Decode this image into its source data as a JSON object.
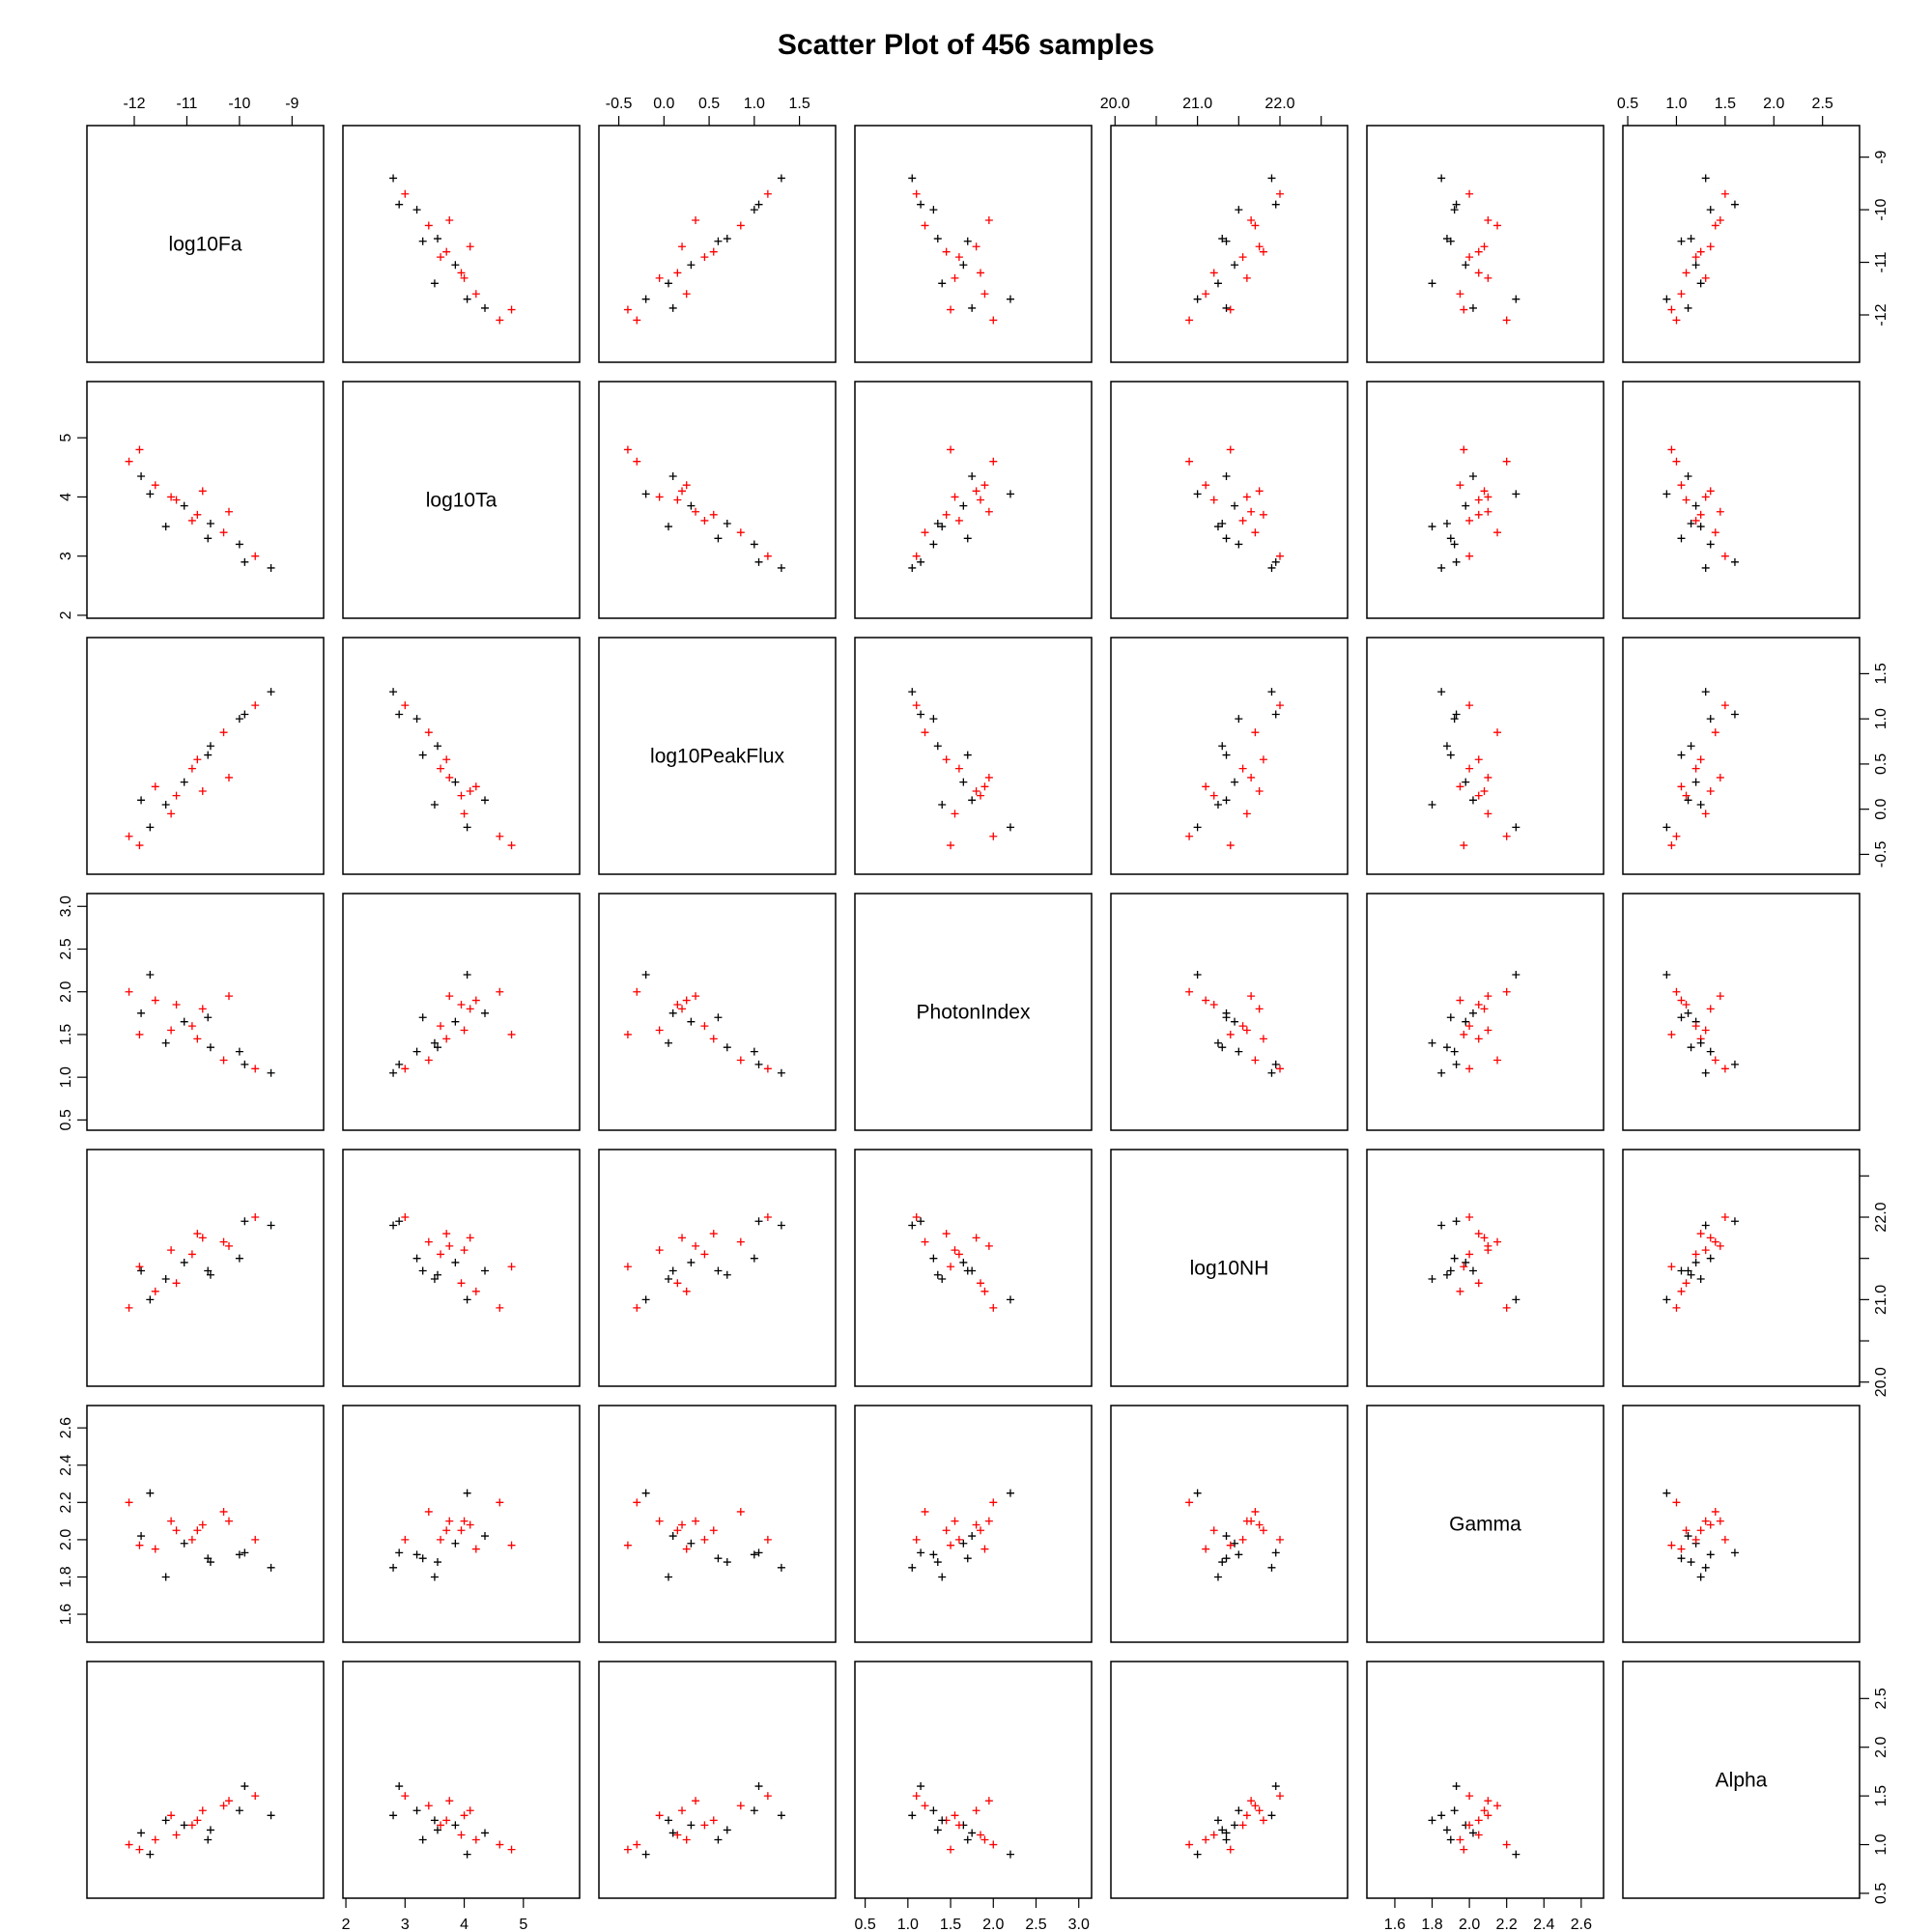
{
  "chart_data": {
    "type": "scatter",
    "plot_type": "scatterplot-matrix",
    "title": "Scatter Plot of 456  samples",
    "variables": [
      "log10Fa",
      "log10Ta",
      "log10PeakFlux",
      "PhotonIndex",
      "log10NH",
      "Gamma",
      "Alpha"
    ],
    "marker": "+",
    "colors": {
      "group_1": "#000000",
      "group_2": "#ff0000"
    },
    "axes": {
      "log10Fa": {
        "range": [
          -12.9,
          -8.4
        ],
        "ticks": [
          -12,
          -11,
          -10,
          -9
        ],
        "tick_labels": [
          "-12",
          "-11",
          "-10",
          "-9"
        ]
      },
      "log10Ta": {
        "range": [
          1.95,
          5.95
        ],
        "ticks": [
          2,
          3,
          4,
          5
        ],
        "tick_labels": [
          "2",
          "3",
          "4",
          "5"
        ]
      },
      "log10PeakFlux": {
        "range": [
          -0.72,
          1.9
        ],
        "ticks": [
          -0.5,
          0.0,
          0.5,
          1.0,
          1.5
        ],
        "tick_labels": [
          "-0.5",
          "0.0",
          "0.5",
          "1.0",
          "1.5"
        ]
      },
      "PhotonIndex": {
        "range": [
          0.38,
          3.15
        ],
        "ticks": [
          0.5,
          1.0,
          1.5,
          2.0,
          2.5,
          3.0
        ],
        "tick_labels": [
          "0.5",
          "1.0",
          "1.5",
          "2.0",
          "2.5",
          "3.0"
        ]
      },
      "log10NH": {
        "range": [
          19.95,
          22.82
        ],
        "ticks": [
          20.0,
          20.5,
          21.0,
          21.5,
          22.0,
          22.5
        ],
        "tick_labels": [
          "20.0",
          "",
          "21.0",
          "",
          "22.0",
          ""
        ]
      },
      "Gamma": {
        "range": [
          1.45,
          2.72
        ],
        "ticks": [
          1.6,
          1.8,
          2.0,
          2.2,
          2.4,
          2.6
        ],
        "tick_labels": [
          "1.6",
          "1.8",
          "2.0",
          "2.2",
          "2.4",
          "2.6"
        ]
      },
      "Alpha": {
        "range": [
          0.45,
          2.88
        ],
        "ticks": [
          0.5,
          1.0,
          1.5,
          2.0,
          2.5
        ],
        "tick_labels": [
          "0.5",
          "1.0",
          "1.5",
          "2.0",
          "2.5"
        ]
      }
    },
    "axis_placement": {
      "top": [
        "log10Fa",
        "log10PeakFlux",
        "log10NH",
        "Alpha"
      ],
      "bottom": [
        "log10Ta",
        "PhotonIndex",
        "Gamma"
      ],
      "left": [
        "log10Ta",
        "PhotonIndex",
        "Gamma"
      ],
      "right": [
        "log10Fa",
        "log10PeakFlux",
        "log10NH",
        "Alpha"
      ]
    },
    "sample_count": 456,
    "points": {
      "fields": [
        "log10Fa",
        "log10Ta",
        "log10PeakFlux",
        "PhotonIndex",
        "log10NH",
        "Gamma",
        "Alpha",
        "group"
      ],
      "rows": [
        [
          -11.87,
          4.35,
          0.1,
          1.75,
          21.35,
          2.02,
          1.12,
          1
        ],
        [
          -11.6,
          4.2,
          0.25,
          1.9,
          21.1,
          1.95,
          1.05,
          2
        ],
        [
          -11.3,
          4.0,
          -0.05,
          1.55,
          21.6,
          2.1,
          1.3,
          2
        ],
        [
          -11.05,
          3.85,
          0.3,
          1.65,
          21.45,
          1.98,
          1.2,
          1
        ],
        [
          -10.8,
          3.7,
          0.55,
          1.45,
          21.8,
          2.05,
          1.25,
          2
        ],
        [
          -10.55,
          3.55,
          0.7,
          1.35,
          21.3,
          1.88,
          1.15,
          1
        ],
        [
          -10.3,
          3.4,
          0.85,
          1.2,
          21.7,
          2.15,
          1.4,
          2
        ],
        [
          -10.0,
          3.2,
          1.0,
          1.3,
          21.5,
          1.92,
          1.35,
          1
        ],
        [
          -9.7,
          3.0,
          1.15,
          1.1,
          22.0,
          2.0,
          1.5,
          2
        ],
        [
          -9.4,
          2.8,
          1.3,
          1.05,
          21.9,
          1.85,
          1.3,
          1
        ],
        [
          -12.1,
          4.6,
          -0.3,
          2.0,
          20.9,
          2.2,
          1.0,
          2
        ],
        [
          -11.7,
          4.05,
          -0.2,
          2.2,
          21.0,
          2.25,
          0.9,
          1
        ],
        [
          -11.2,
          3.95,
          0.15,
          1.85,
          21.2,
          2.05,
          1.1,
          2
        ],
        [
          -10.9,
          3.6,
          0.45,
          1.6,
          21.55,
          2.0,
          1.2,
          2
        ],
        [
          -10.6,
          3.3,
          0.6,
          1.7,
          21.35,
          1.9,
          1.05,
          1
        ],
        [
          -10.2,
          3.75,
          0.35,
          1.95,
          21.65,
          2.1,
          1.45,
          2
        ],
        [
          -11.4,
          3.5,
          0.05,
          1.4,
          21.25,
          1.8,
          1.25,
          1
        ],
        [
          -10.7,
          4.1,
          0.2,
          1.8,
          21.75,
          2.08,
          1.35,
          2
        ],
        [
          -11.9,
          4.8,
          -0.4,
          1.5,
          21.4,
          1.97,
          0.95,
          2
        ],
        [
          -9.9,
          2.9,
          1.05,
          1.15,
          21.95,
          1.93,
          1.6,
          1
        ]
      ]
    }
  }
}
